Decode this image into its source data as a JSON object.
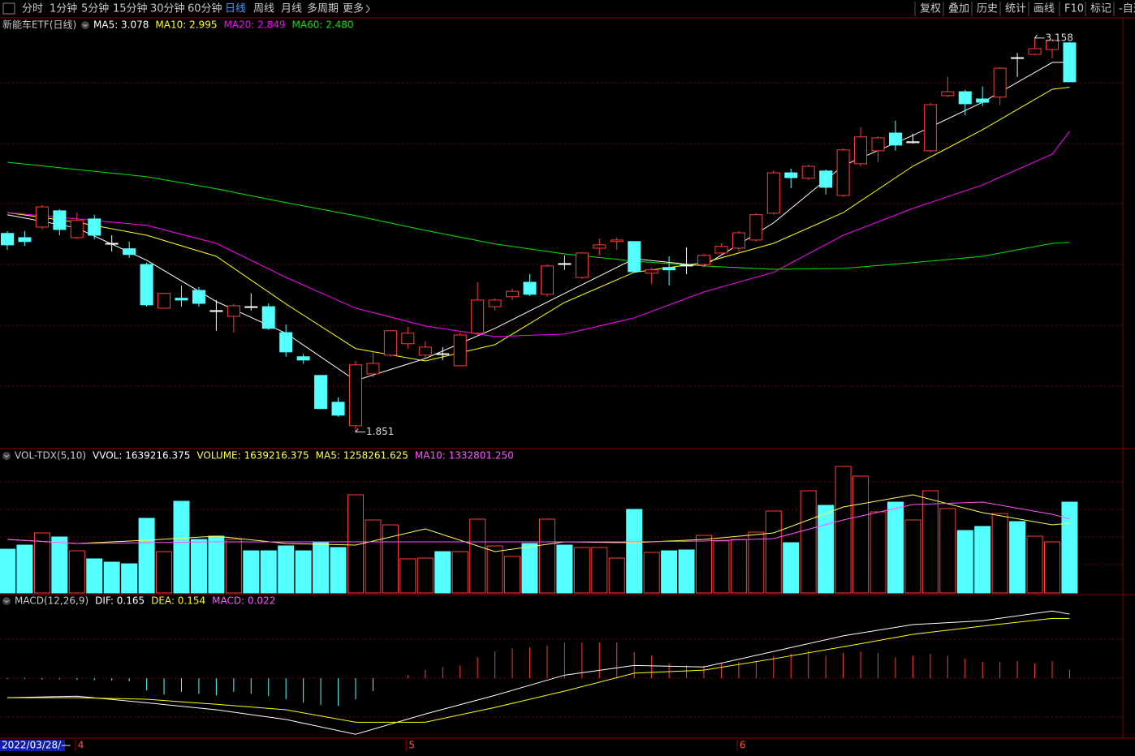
{
  "toolbar": {
    "left": [
      "分时",
      "1分钟",
      "5分钟",
      "15分钟",
      "30分钟",
      "60分钟",
      "日线",
      "周线",
      "月线",
      "多周期",
      "更多"
    ],
    "right": [
      "复权",
      "叠加",
      "历史",
      "统计",
      "画线",
      "F10",
      "标记",
      "-自选"
    ]
  },
  "cursor_date": "2022/03/28/—",
  "chart_data": [
    {
      "type": "candlestick",
      "title": "新能车ETF(日线)",
      "up_color": "#ff3c3c",
      "down_color": "#54ffff",
      "flat_color": "#ffffff",
      "ylim": [
        1.799,
        3.182
      ],
      "max_price": 3.158,
      "min_price": 1.851,
      "ohlc": [
        [
          2.51,
          2.518,
          2.456,
          2.472
        ],
        [
          2.496,
          2.518,
          2.469,
          2.483
        ],
        [
          2.531,
          2.604,
          2.523,
          2.598
        ],
        [
          2.585,
          2.59,
          2.504,
          2.523
        ],
        [
          2.496,
          2.579,
          2.491,
          2.553
        ],
        [
          2.558,
          2.572,
          2.491,
          2.504
        ],
        [
          2.477,
          2.504,
          2.45,
          2.475
        ],
        [
          2.459,
          2.483,
          2.429,
          2.44
        ],
        [
          2.407,
          2.413,
          2.267,
          2.273
        ],
        [
          2.262,
          2.311,
          2.262,
          2.311
        ],
        [
          2.295,
          2.337,
          2.267,
          2.289
        ],
        [
          2.321,
          2.332,
          2.267,
          2.278
        ],
        [
          2.254,
          2.289,
          2.187,
          2.251
        ],
        [
          2.235,
          2.276,
          2.181,
          2.27
        ],
        [
          2.267,
          2.311,
          2.254,
          2.265
        ],
        [
          2.267,
          2.278,
          2.19,
          2.195
        ],
        [
          2.181,
          2.208,
          2.101,
          2.117
        ],
        [
          2.101,
          2.111,
          2.077,
          2.09
        ],
        [
          2.039,
          2.039,
          1.929,
          1.929
        ],
        [
          1.95,
          1.966,
          1.902,
          1.907
        ],
        [
          1.872,
          2.087,
          1.851,
          2.074
        ],
        [
          2.044,
          2.122,
          2.033,
          2.079
        ],
        [
          2.106,
          2.187,
          2.101,
          2.187
        ],
        [
          2.144,
          2.2,
          2.128,
          2.179
        ],
        [
          2.106,
          2.152,
          2.098,
          2.133
        ],
        [
          2.111,
          2.133,
          2.09,
          2.109
        ],
        [
          2.071,
          2.181,
          2.069,
          2.173
        ],
        [
          2.179,
          2.348,
          2.173,
          2.289
        ],
        [
          2.267,
          2.295,
          2.254,
          2.289
        ],
        [
          2.3,
          2.327,
          2.289,
          2.318
        ],
        [
          2.348,
          2.375,
          2.302,
          2.308
        ],
        [
          2.308,
          2.407,
          2.3,
          2.402
        ],
        [
          2.41,
          2.437,
          2.389,
          2.407
        ],
        [
          2.364,
          2.448,
          2.359,
          2.445
        ],
        [
          2.461,
          2.493,
          2.437,
          2.472
        ],
        [
          2.483,
          2.496,
          2.456,
          2.488
        ],
        [
          2.483,
          2.483,
          2.383,
          2.383
        ],
        [
          2.378,
          2.397,
          2.343,
          2.389
        ],
        [
          2.397,
          2.434,
          2.337,
          2.389
        ],
        [
          2.405,
          2.464,
          2.375,
          2.402
        ],
        [
          2.407,
          2.442,
          2.397,
          2.437
        ],
        [
          2.445,
          2.477,
          2.437,
          2.467
        ],
        [
          2.461,
          2.518,
          2.45,
          2.512
        ],
        [
          2.488,
          2.577,
          2.483,
          2.572
        ],
        [
          2.577,
          2.719,
          2.572,
          2.711
        ],
        [
          2.711,
          2.725,
          2.66,
          2.695
        ],
        [
          2.693,
          2.738,
          2.687,
          2.733
        ],
        [
          2.717,
          2.722,
          2.639,
          2.663
        ],
        [
          2.636,
          2.792,
          2.631,
          2.787
        ],
        [
          2.741,
          2.862,
          2.733,
          2.83
        ],
        [
          2.784,
          2.832,
          2.746,
          2.827
        ],
        [
          2.843,
          2.884,
          2.784,
          2.803
        ],
        [
          2.811,
          2.841,
          2.808,
          2.814
        ],
        [
          2.784,
          2.943,
          2.779,
          2.937
        ],
        [
          2.967,
          3.029,
          2.962,
          2.98
        ],
        [
          2.98,
          2.986,
          2.902,
          2.94
        ],
        [
          2.956,
          2.997,
          2.932,
          2.945
        ],
        [
          2.962,
          3.061,
          2.935,
          3.058
        ],
        [
          3.093,
          3.109,
          3.029,
          3.091
        ],
        [
          3.104,
          3.158,
          3.101,
          3.123
        ],
        [
          3.12,
          3.155,
          3.091,
          3.15
        ],
        [
          3.142,
          3.144,
          3.013,
          3.013
        ]
      ],
      "series": [
        {
          "name": "MA5: 3.078",
          "color": "#ffffff",
          "x": [
            0,
            4,
            8,
            12,
            16,
            20,
            24,
            28,
            32,
            36,
            40,
            44,
            48,
            52,
            56,
            60,
            61
          ],
          "values": [
            2.572,
            2.528,
            2.421,
            2.284,
            2.179,
            2.022,
            2.095,
            2.195,
            2.311,
            2.426,
            2.402,
            2.545,
            2.735,
            2.835,
            2.945,
            3.077,
            3.078
          ]
        },
        {
          "name": "MA10: 2.995",
          "color": "#ffff00",
          "x": [
            0,
            4,
            8,
            12,
            16,
            20,
            24,
            28,
            32,
            36,
            40,
            44,
            48,
            52,
            56,
            60,
            61
          ],
          "values": [
            2.579,
            2.547,
            2.504,
            2.434,
            2.276,
            2.128,
            2.087,
            2.141,
            2.281,
            2.381,
            2.413,
            2.477,
            2.579,
            2.733,
            2.854,
            2.988,
            2.995
          ]
        },
        {
          "name": "MA20: 2.849",
          "color": "#ff00ff",
          "x": [
            0,
            4,
            8,
            12,
            16,
            20,
            24,
            28,
            32,
            36,
            40,
            44,
            48,
            52,
            56,
            60,
            61
          ],
          "values": [
            2.579,
            2.558,
            2.537,
            2.477,
            2.364,
            2.262,
            2.203,
            2.168,
            2.176,
            2.23,
            2.316,
            2.381,
            2.504,
            2.593,
            2.671,
            2.773,
            2.849
          ]
        },
        {
          "name": "MA60: 2.480",
          "color": "#00e600",
          "x": [
            0,
            4,
            8,
            12,
            16,
            20,
            24,
            28,
            32,
            36,
            40,
            44,
            48,
            52,
            56,
            60,
            61
          ],
          "values": [
            2.746,
            2.722,
            2.698,
            2.658,
            2.612,
            2.569,
            2.52,
            2.475,
            2.442,
            2.418,
            2.402,
            2.391,
            2.394,
            2.413,
            2.434,
            2.477,
            2.48
          ]
        }
      ]
    },
    {
      "type": "volume",
      "title": "VOL-TDX(5,10)",
      "subtitle": "VVOL: 1639216.375",
      "subtitle_color": "#ffffff",
      "ylim": [
        0,
        2576000
      ],
      "series": [
        {
          "name": "VOLUME: 1639216.375",
          "color": "#ffff54",
          "kind": "bar",
          "values": [
            790000,
            863500,
            1083000,
            1010000,
            761000,
            615000,
            556000,
            527000,
            1347000,
            746000,
            1654000,
            966000,
            1025000,
            966000,
            761000,
            761000,
            849000,
            761000,
            907000,
            820000,
            1771000,
            1317000,
            1229000,
            615000,
            629000,
            746000,
            746000,
            1332000,
            849000,
            659000,
            893000,
            1332000,
            864000,
            820000,
            820000,
            629000,
            1508000,
            732000,
            761000,
            776000,
            1039000,
            937000,
            966000,
            1098000,
            1478000,
            907000,
            1844000,
            1581000,
            2283000,
            2108000,
            1464000,
            1639000,
            1317000,
            1844000,
            1522000,
            1127000,
            1200000,
            1434000,
            1288000,
            1025000,
            922000,
            1639216.375
          ]
        },
        {
          "name": "MA5: 1258261.625",
          "color": "#ffff54",
          "kind": "line",
          "x": [
            0,
            4,
            8,
            12,
            16,
            20,
            24,
            28,
            32,
            36,
            40,
            44,
            48,
            52,
            56,
            60,
            61
          ],
          "values": [
            966000,
            893000,
            951000,
            1025000,
            893000,
            864000,
            1156000,
            746000,
            922000,
            907000,
            966000,
            1083000,
            1551000,
            1771000,
            1449000,
            1229000,
            1258261.625
          ]
        },
        {
          "name": "MA10: 1332801.250",
          "color": "#ff54ff",
          "kind": "line",
          "x": [
            0,
            4,
            8,
            12,
            16,
            20,
            24,
            28,
            32,
            36,
            40,
            44,
            48,
            52,
            56,
            60,
            61
          ],
          "values": [
            966000,
            893000,
            907000,
            922000,
            922000,
            922000,
            922000,
            922000,
            922000,
            922000,
            937000,
            981000,
            1317000,
            1595000,
            1639000,
            1420000,
            1332801.25
          ]
        }
      ]
    },
    {
      "type": "macd",
      "title": "MACD(12,26,9)",
      "ylim": [
        -0.154,
        0.211
      ],
      "up_color": "#ff3c3c",
      "down_color": "#54ffff",
      "categories": [
        null,
        null,
        null,
        null,
        "4",
        null,
        null,
        null,
        null,
        null,
        null,
        null,
        null,
        null,
        null,
        null,
        null,
        null,
        null,
        null,
        null,
        null,
        null,
        "5",
        null,
        null,
        null,
        null,
        null,
        null,
        null,
        null,
        null,
        null,
        null,
        null,
        null,
        null,
        null,
        null,
        null,
        null,
        "6",
        null,
        null,
        null,
        null,
        null,
        null,
        null,
        null,
        null,
        null,
        null,
        null,
        null,
        null,
        null,
        null,
        null,
        null,
        null
      ],
      "series": [
        {
          "name": "DIF: 0.165",
          "color": "#ffffff",
          "kind": "line",
          "x": [
            0,
            4,
            8,
            12,
            16,
            20,
            24,
            28,
            32,
            36,
            40,
            44,
            48,
            52,
            56,
            60,
            61
          ],
          "values": [
            -0.05,
            -0.046,
            -0.063,
            -0.081,
            -0.106,
            -0.144,
            -0.092,
            -0.044,
            0.008,
            0.033,
            0.029,
            0.069,
            0.109,
            0.138,
            0.148,
            0.173,
            0.165
          ]
        },
        {
          "name": "DEA: 0.154",
          "color": "#ffff00",
          "kind": "line",
          "x": [
            0,
            4,
            8,
            12,
            16,
            20,
            24,
            28,
            32,
            36,
            40,
            44,
            48,
            52,
            56,
            60,
            61
          ],
          "values": [
            -0.05,
            -0.05,
            -0.054,
            -0.067,
            -0.081,
            -0.113,
            -0.113,
            -0.075,
            -0.033,
            0.013,
            0.021,
            0.05,
            0.081,
            0.113,
            0.134,
            0.154,
            0.154
          ]
        },
        {
          "name": "MACD: 0.022",
          "color": "#ff54ff",
          "kind": "bar",
          "values": [
            -0.002,
            -0.002,
            -0.003,
            -0.003,
            -0.004,
            -0.005,
            -0.006,
            -0.008,
            -0.031,
            -0.042,
            -0.035,
            -0.04,
            -0.044,
            -0.035,
            -0.04,
            -0.046,
            -0.054,
            -0.063,
            -0.069,
            -0.071,
            -0.054,
            -0.033,
            0.0,
            0.008,
            0.021,
            0.029,
            0.033,
            0.054,
            0.069,
            0.077,
            0.079,
            0.084,
            0.092,
            0.092,
            0.092,
            0.092,
            0.067,
            0.058,
            0.038,
            0.033,
            0.033,
            0.038,
            0.042,
            0.044,
            0.058,
            0.063,
            0.071,
            0.058,
            0.065,
            0.069,
            0.065,
            0.054,
            0.058,
            0.063,
            0.058,
            0.05,
            0.042,
            0.042,
            0.044,
            0.038,
            0.044,
            0.022
          ]
        }
      ]
    }
  ]
}
